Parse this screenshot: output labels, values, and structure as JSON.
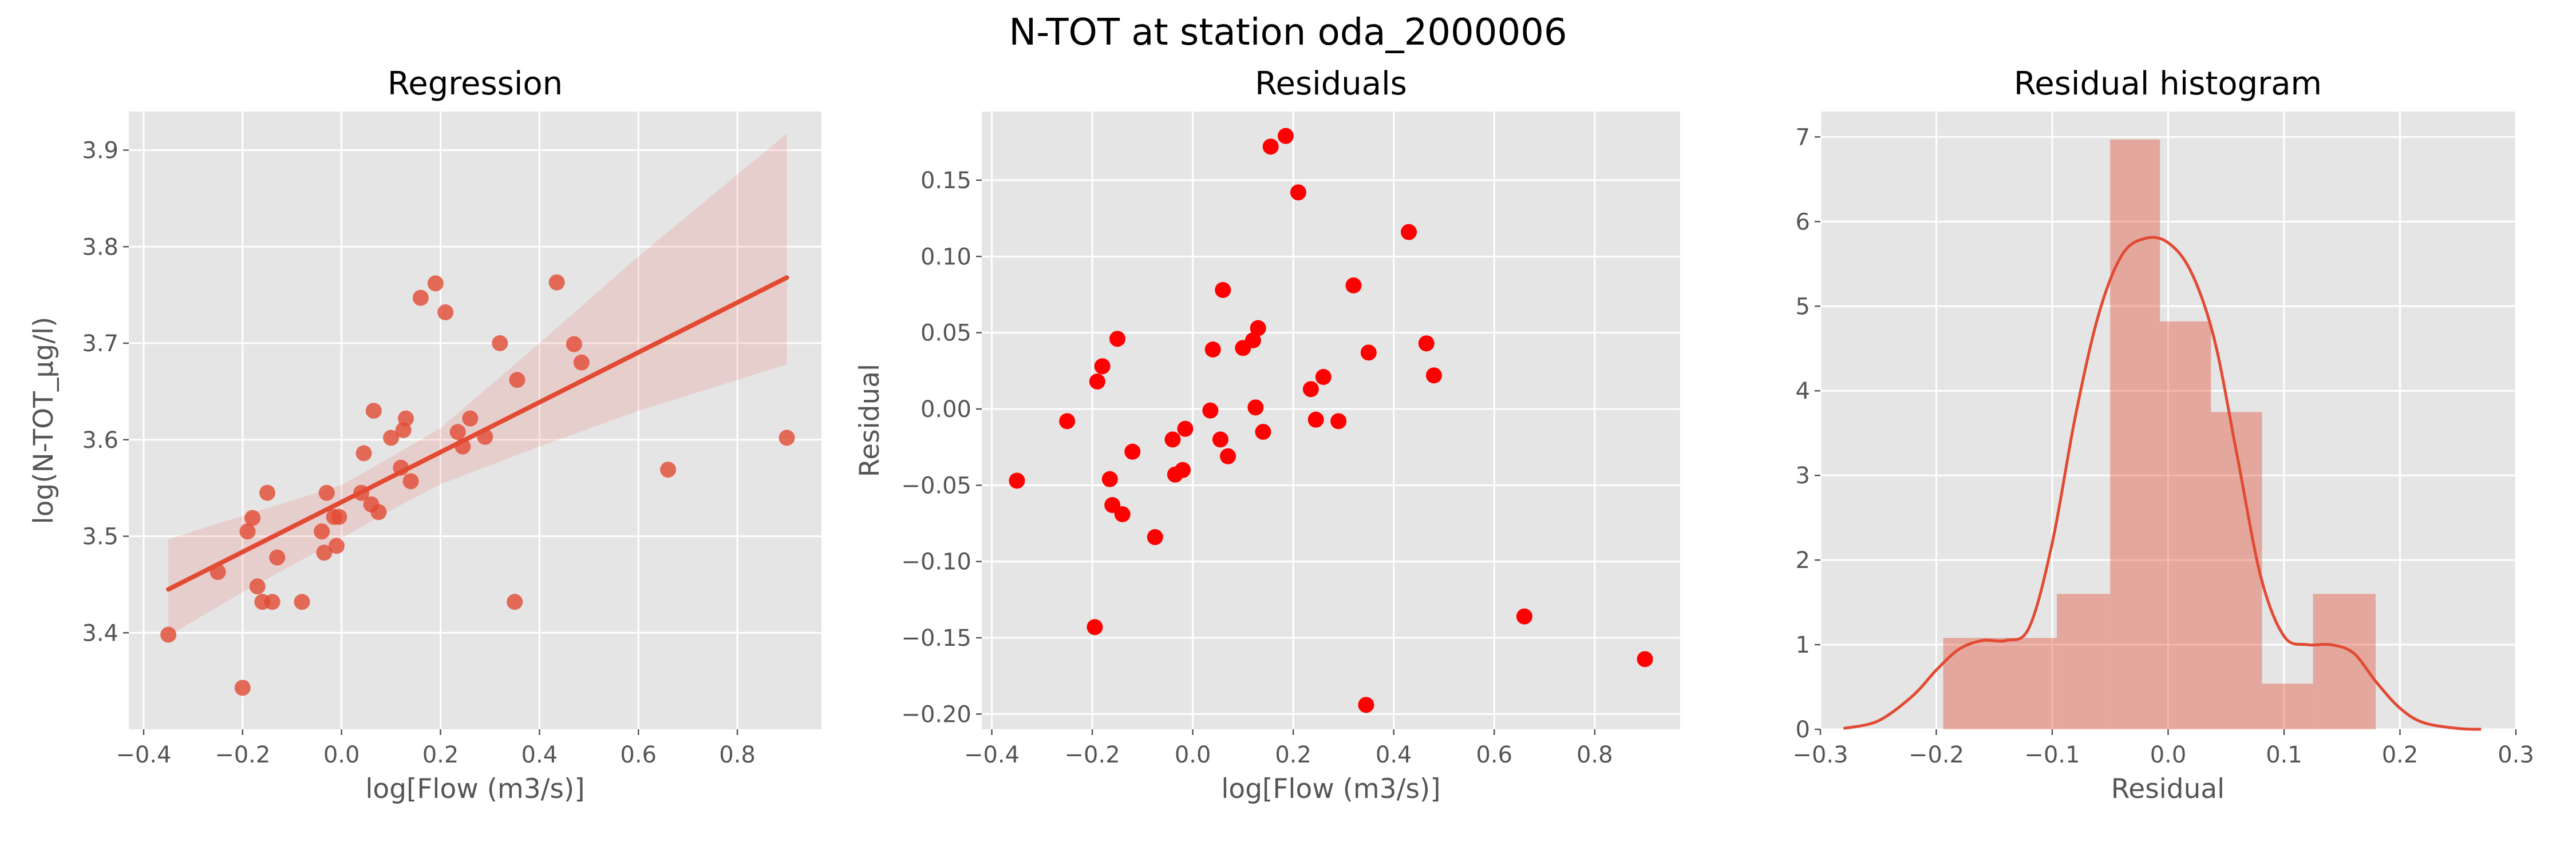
{
  "figure": {
    "suptitle": "N-TOT at station oda_2000006"
  },
  "colors": {
    "panel_bg": "#E5E5E5",
    "grid": "#FFFFFF",
    "accent": "#E24A33",
    "residual_points": "#FF0000",
    "hist_fill": "#E24A33",
    "text": "#555555"
  },
  "chart_data": [
    {
      "type": "scatter",
      "title": "Regression",
      "xlabel": "log[Flow (m3/s)]",
      "ylabel": "log(N-TOT_µg/l)",
      "xlim": [
        -0.43,
        0.97
      ],
      "ylim": [
        3.3,
        3.94
      ],
      "xticks": [
        -0.4,
        -0.2,
        0.0,
        0.2,
        0.4,
        0.6,
        0.8
      ],
      "xtick_labels": [
        "−0.4",
        "−0.2",
        "0.0",
        "0.2",
        "0.4",
        "0.6",
        "0.8"
      ],
      "yticks": [
        3.4,
        3.5,
        3.6,
        3.7,
        3.8,
        3.9
      ],
      "ytick_labels": [
        "3.4",
        "3.5",
        "3.6",
        "3.7",
        "3.8",
        "3.9"
      ],
      "grid": true,
      "regression_line": {
        "x": [
          -0.35,
          0.9
        ],
        "y": [
          3.445,
          3.768
        ]
      },
      "confidence_band": {
        "x": [
          -0.35,
          -0.2,
          0.0,
          0.1,
          0.2,
          0.4,
          0.6,
          0.9
        ],
        "upper": [
          3.497,
          3.521,
          3.553,
          3.582,
          3.612,
          3.7,
          3.79,
          3.917
        ],
        "lower": [
          3.397,
          3.442,
          3.498,
          3.527,
          3.554,
          3.593,
          3.63,
          3.678
        ]
      },
      "x": [
        -0.35,
        -0.25,
        -0.2,
        -0.19,
        -0.18,
        -0.17,
        -0.16,
        -0.15,
        -0.14,
        -0.13,
        -0.08,
        -0.04,
        -0.035,
        -0.03,
        -0.015,
        -0.01,
        -0.005,
        0.04,
        0.045,
        0.06,
        0.065,
        0.075,
        0.1,
        0.12,
        0.125,
        0.13,
        0.14,
        0.16,
        0.19,
        0.21,
        0.235,
        0.245,
        0.26,
        0.29,
        0.32,
        0.35,
        0.355,
        0.435,
        0.47,
        0.485,
        0.66,
        0.9
      ],
      "y": [
        3.398,
        3.463,
        3.343,
        3.505,
        3.519,
        3.448,
        3.432,
        3.545,
        3.432,
        3.478,
        3.432,
        3.505,
        3.483,
        3.545,
        3.52,
        3.49,
        3.52,
        3.545,
        3.586,
        3.533,
        3.63,
        3.525,
        3.602,
        3.571,
        3.61,
        3.622,
        3.557,
        3.747,
        3.762,
        3.732,
        3.608,
        3.593,
        3.622,
        3.603,
        3.7,
        3.432,
        3.662,
        3.763,
        3.699,
        3.68,
        3.569,
        3.602
      ]
    },
    {
      "type": "scatter",
      "title": "Residuals",
      "xlabel": "log[Flow (m3/s)]",
      "ylabel": "Residual",
      "xlim": [
        -0.42,
        0.97
      ],
      "ylim": [
        -0.21,
        0.195
      ],
      "xticks": [
        -0.4,
        -0.2,
        0.0,
        0.2,
        0.4,
        0.6,
        0.8
      ],
      "xtick_labels": [
        "−0.4",
        "−0.2",
        "0.0",
        "0.2",
        "0.4",
        "0.6",
        "0.8"
      ],
      "yticks": [
        -0.2,
        -0.15,
        -0.1,
        -0.05,
        0.0,
        0.05,
        0.1,
        0.15
      ],
      "ytick_labels": [
        "−0.20",
        "−0.15",
        "−0.10",
        "−0.05",
        "0.00",
        "0.05",
        "0.10",
        "0.15"
      ],
      "grid": true,
      "x": [
        -0.35,
        -0.25,
        -0.195,
        -0.19,
        -0.18,
        -0.165,
        -0.16,
        -0.15,
        -0.14,
        -0.12,
        -0.075,
        -0.04,
        -0.035,
        -0.02,
        -0.015,
        0.035,
        0.04,
        0.055,
        0.06,
        0.07,
        0.1,
        0.12,
        0.125,
        0.13,
        0.14,
        0.155,
        0.185,
        0.21,
        0.235,
        0.245,
        0.26,
        0.29,
        0.32,
        0.345,
        0.35,
        0.43,
        0.465,
        0.48,
        0.66,
        0.9
      ],
      "y": [
        -0.047,
        -0.008,
        -0.143,
        0.018,
        0.028,
        -0.046,
        -0.063,
        0.046,
        -0.069,
        -0.028,
        -0.084,
        -0.02,
        -0.043,
        -0.04,
        -0.013,
        -0.001,
        0.039,
        -0.02,
        0.078,
        -0.031,
        0.04,
        0.045,
        0.001,
        0.053,
        -0.015,
        0.172,
        0.179,
        0.142,
        0.013,
        -0.007,
        0.021,
        -0.008,
        0.081,
        -0.194,
        0.037,
        0.116,
        0.043,
        0.022,
        -0.136,
        -0.164
      ]
    },
    {
      "type": "bar",
      "title": "Residual histogram",
      "xlabel": "Residual",
      "ylabel": "",
      "xlim": [
        -0.3,
        0.3
      ],
      "ylim": [
        0,
        7.3
      ],
      "xticks": [
        -0.3,
        -0.2,
        -0.1,
        0.0,
        0.1,
        0.2,
        0.3
      ],
      "xtick_labels": [
        "−0.3",
        "−0.2",
        "−0.1",
        "0.0",
        "0.1",
        "0.2",
        "0.3"
      ],
      "yticks": [
        0,
        1,
        2,
        3,
        4,
        5,
        6,
        7
      ],
      "ytick_labels": [
        "0",
        "1",
        "2",
        "3",
        "4",
        "5",
        "6",
        "7"
      ],
      "grid": true,
      "bins": [
        {
          "x0": -0.194,
          "x1": -0.14,
          "value": 1.08
        },
        {
          "x0": -0.14,
          "x1": -0.096,
          "value": 1.08
        },
        {
          "x0": -0.096,
          "x1": -0.05,
          "value": 1.6
        },
        {
          "x0": -0.05,
          "x1": -0.007,
          "value": 6.97
        },
        {
          "x0": -0.007,
          "x1": 0.037,
          "value": 4.82
        },
        {
          "x0": 0.037,
          "x1": 0.081,
          "value": 3.75
        },
        {
          "x0": 0.081,
          "x1": 0.125,
          "value": 0.54
        },
        {
          "x0": 0.125,
          "x1": 0.179,
          "value": 1.6
        }
      ],
      "kde": {
        "x": [
          -0.28,
          -0.25,
          -0.22,
          -0.2,
          -0.18,
          -0.16,
          -0.14,
          -0.12,
          -0.1,
          -0.08,
          -0.06,
          -0.04,
          -0.02,
          0.0,
          0.02,
          0.04,
          0.06,
          0.08,
          0.1,
          0.12,
          0.14,
          0.16,
          0.18,
          0.2,
          0.22,
          0.25,
          0.27
        ],
        "y": [
          0.01,
          0.1,
          0.4,
          0.7,
          0.95,
          1.05,
          1.05,
          1.2,
          2.2,
          3.7,
          4.9,
          5.6,
          5.8,
          5.75,
          5.4,
          4.6,
          3.2,
          1.8,
          1.1,
          1.0,
          1.0,
          0.9,
          0.55,
          0.25,
          0.08,
          0.01,
          0.0
        ]
      }
    }
  ]
}
